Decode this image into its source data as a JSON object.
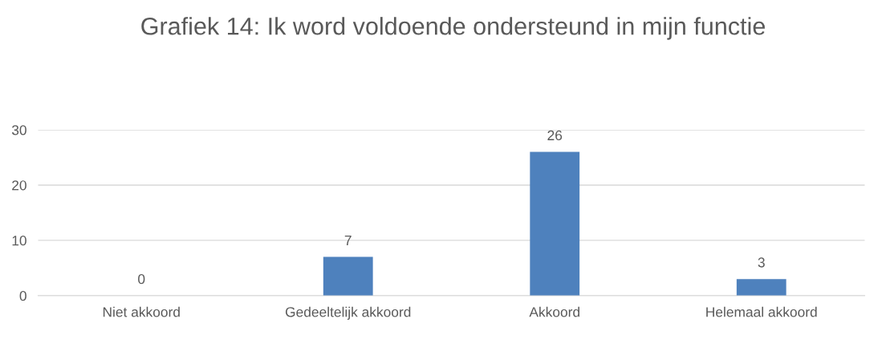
{
  "chart_data": {
    "type": "bar",
    "title": "Grafiek 14: Ik word voldoende ondersteund in mijn functie",
    "categories": [
      "Niet akkoord",
      "Gedeeltelijk akkoord",
      "Akkoord",
      "Helemaal akkoord"
    ],
    "values": [
      0,
      7,
      26,
      3
    ],
    "color": "#4e81bd",
    "ylim": [
      0,
      30
    ],
    "yticks": [
      0,
      10,
      20,
      30
    ],
    "grid": "y",
    "data_labels": true
  }
}
